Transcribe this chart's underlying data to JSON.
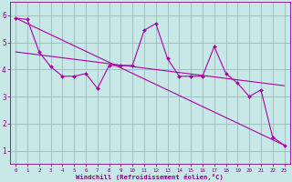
{
  "background_color": "#c8e8e8",
  "plot_bg_color": "#c8e8e8",
  "line_color": "#aa00aa",
  "grid_color": "#99bbbb",
  "xlabel": "Windchill (Refroidissement éolien,°C)",
  "xlabel_color": "#880088",
  "tick_color": "#880088",
  "xlim": [
    -0.5,
    23.5
  ],
  "ylim": [
    0.5,
    6.5
  ],
  "yticks": [
    1,
    2,
    3,
    4,
    5,
    6
  ],
  "xticks": [
    0,
    1,
    2,
    3,
    4,
    5,
    6,
    7,
    8,
    9,
    10,
    11,
    12,
    13,
    14,
    15,
    16,
    17,
    18,
    19,
    20,
    21,
    22,
    23
  ],
  "series1_x": [
    0,
    1,
    2,
    3,
    4,
    5,
    6,
    7,
    8,
    9,
    10,
    11,
    12,
    13,
    14,
    15,
    16,
    17,
    18,
    19,
    20,
    21,
    22,
    23
  ],
  "series1_y": [
    5.9,
    5.85,
    4.65,
    4.1,
    3.75,
    3.75,
    3.85,
    3.3,
    4.15,
    4.15,
    4.15,
    5.45,
    5.7,
    4.4,
    3.75,
    3.75,
    3.75,
    4.85,
    3.85,
    3.5,
    3.0,
    3.25,
    1.5,
    1.2
  ],
  "series2_x": [
    0,
    23
  ],
  "series2_y": [
    5.9,
    1.2
  ],
  "series3_x": [
    0,
    23
  ],
  "series3_y": [
    4.65,
    3.4
  ]
}
